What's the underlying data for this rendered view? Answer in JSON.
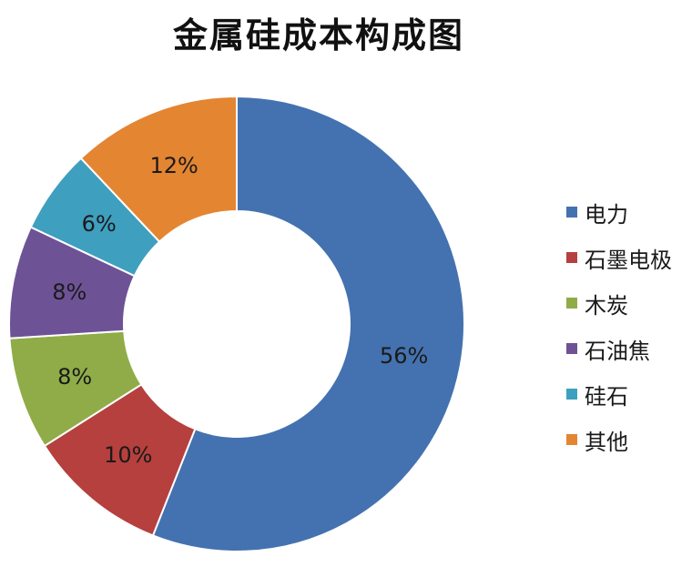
{
  "chart_data": {
    "type": "pie",
    "title": "金属硅成本构成图",
    "donut": true,
    "categories": [
      "电力",
      "石墨电极",
      "木炭",
      "石油焦",
      "硅石",
      "其他"
    ],
    "values": [
      56,
      10,
      8,
      8,
      6,
      12
    ],
    "data_labels": [
      "56%",
      "10%",
      "8%",
      "8%",
      "6%",
      "12%"
    ],
    "colors": [
      "#4472b0",
      "#b5403d",
      "#8fac48",
      "#6e5296",
      "#3e9fbf",
      "#e48532"
    ],
    "legend_position": "right"
  }
}
